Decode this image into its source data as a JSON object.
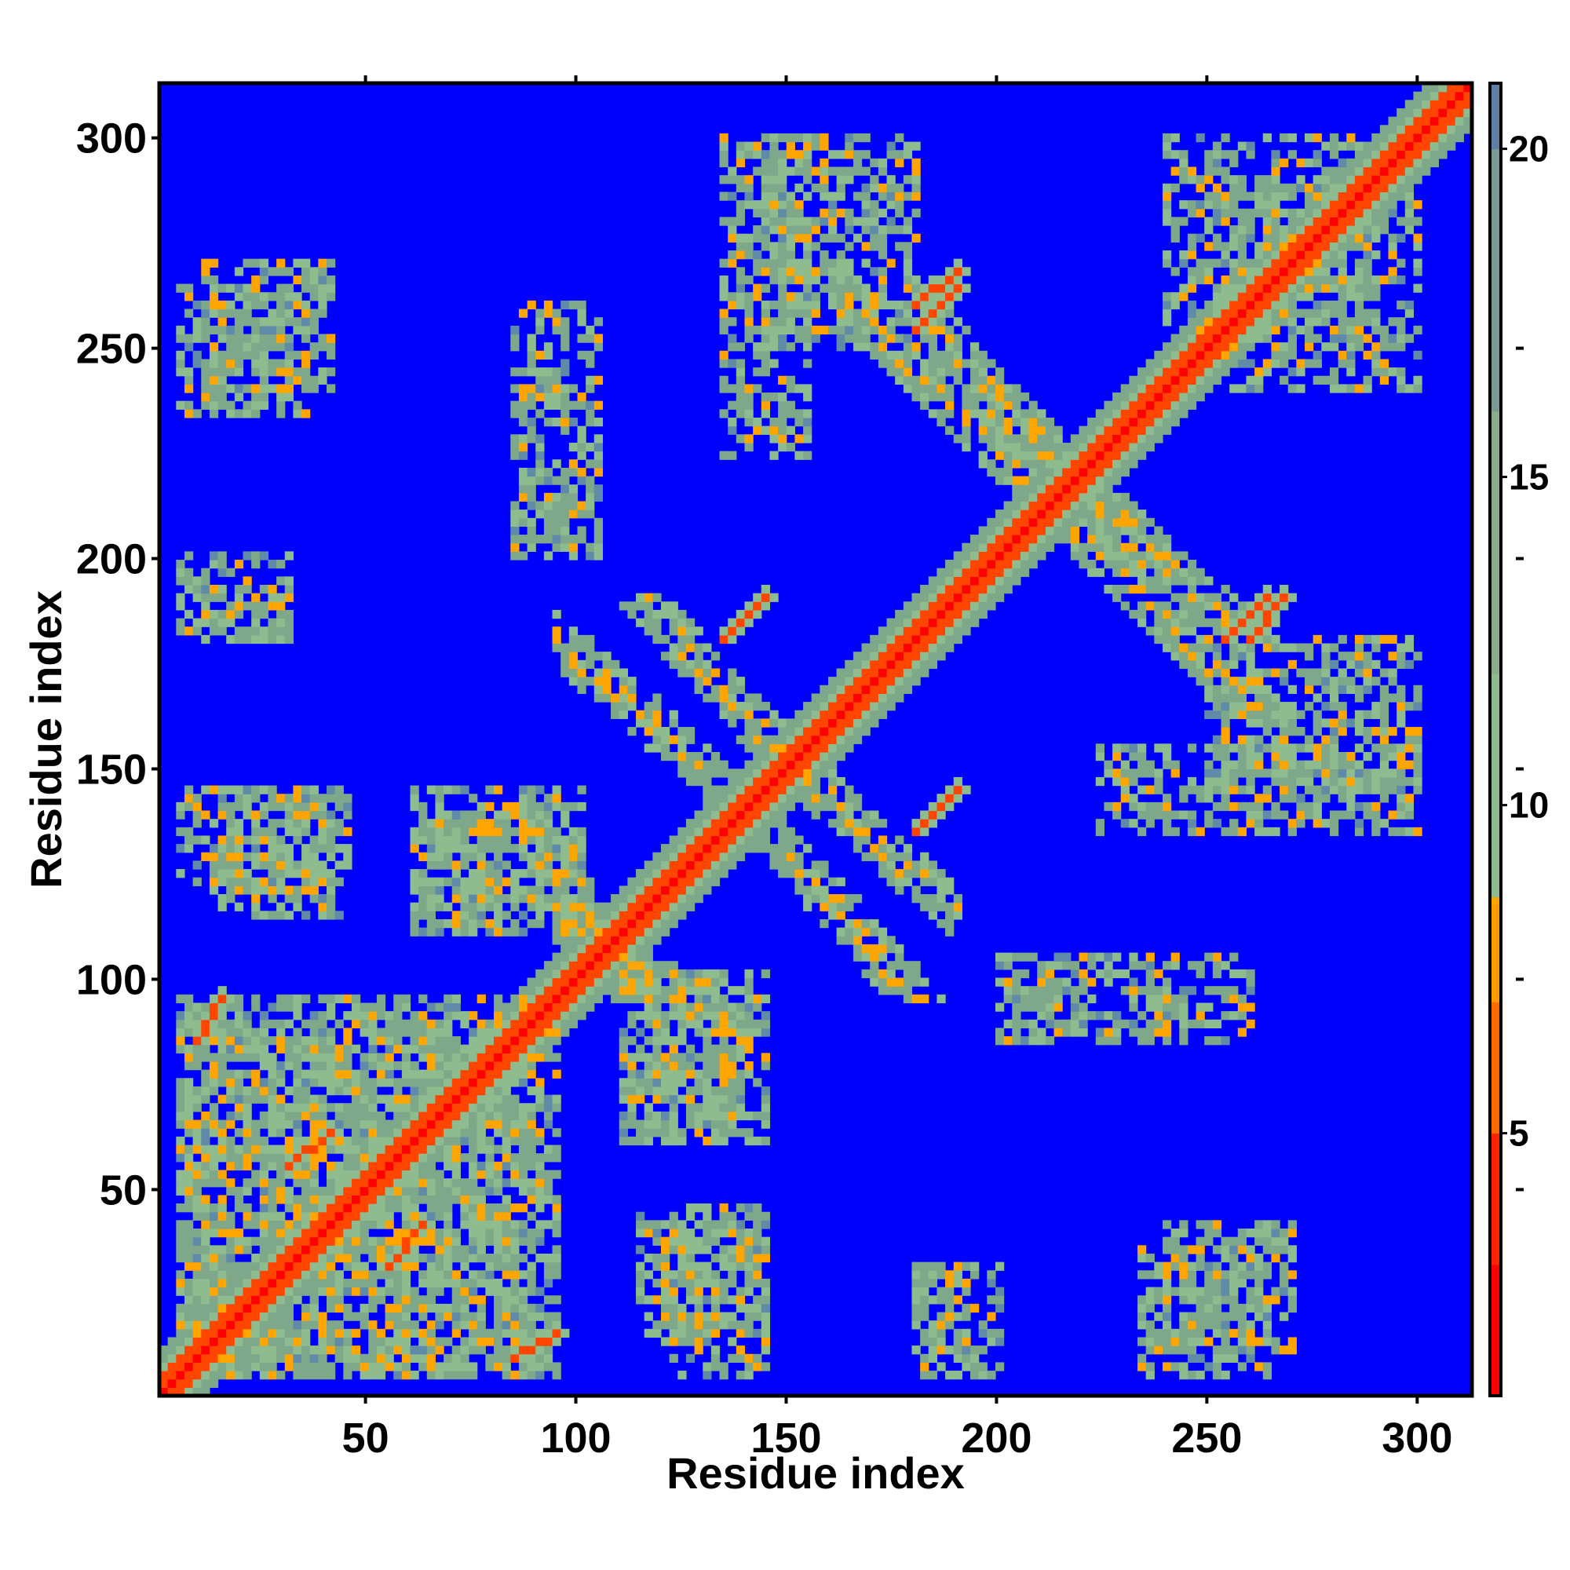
{
  "chart_data": {
    "type": "heatmap",
    "title": "",
    "xlabel": "Residue index",
    "ylabel": "Residue index",
    "xlim": [
      1,
      313
    ],
    "ylim": [
      1,
      313
    ],
    "x_ticks": [
      50,
      100,
      150,
      200,
      250,
      300
    ],
    "y_ticks": [
      50,
      100,
      150,
      200,
      250,
      300
    ],
    "colorbar": {
      "ticks": [
        5,
        10,
        15,
        20
      ],
      "range": [
        1,
        21
      ],
      "colors": {
        "low": "#ff0000",
        "mid_low": "#ff8c00",
        "mid": "#8fbc8f",
        "high": "#5f8aa8",
        "background": "#0000ff"
      }
    },
    "symmetric": true,
    "diagonal": {
      "value": 2
    },
    "contact_features": [
      {
        "kind": "diagonal_band",
        "range": [
          1,
          313
        ],
        "width": 8
      },
      {
        "kind": "block",
        "x": [
          5,
          90
        ],
        "y": [
          5,
          95
        ],
        "level": "medium"
      },
      {
        "kind": "block",
        "x": [
          110,
          145
        ],
        "y": [
          60,
          100
        ],
        "level": "medium"
      },
      {
        "kind": "block",
        "x": [
          115,
          145
        ],
        "y": [
          15,
          45
        ],
        "level": "medium"
      },
      {
        "kind": "block",
        "x": [
          180,
          195
        ],
        "y": [
          10,
          30
        ],
        "level": "medium"
      },
      {
        "kind": "block",
        "x": [
          240,
          270
        ],
        "y": [
          10,
          40
        ],
        "level": "medium"
      },
      {
        "kind": "block",
        "x": [
          5,
          35
        ],
        "y": [
          235,
          265
        ],
        "level": "medium"
      },
      {
        "kind": "block",
        "x": [
          5,
          40
        ],
        "y": [
          120,
          145
        ],
        "level": "medium"
      },
      {
        "kind": "block",
        "x": [
          60,
          80
        ],
        "y": [
          110,
          135
        ],
        "level": "medium"
      },
      {
        "kind": "block",
        "x": [
          5,
          30
        ],
        "y": [
          180,
          200
        ],
        "level": "medium"
      },
      {
        "kind": "block",
        "x": [
          240,
          290
        ],
        "y": [
          255,
          300
        ],
        "level": "medium"
      },
      {
        "kind": "block",
        "x": [
          200,
          260
        ],
        "y": [
          85,
          105
        ],
        "level": "medium"
      },
      {
        "kind": "block",
        "x": [
          225,
          300
        ],
        "y": [
          135,
          155
        ],
        "level": "medium"
      },
      {
        "kind": "block",
        "x": [
          145,
          180
        ],
        "y": [
          250,
          300
        ],
        "level": "medium"
      },
      {
        "kind": "antidiagonal",
        "x": [
          85,
          115
        ],
        "y": [
          95,
          140
        ],
        "level": "medium"
      },
      {
        "kind": "antidiagonal",
        "x": [
          140,
          180
        ],
        "y": [
          95,
          140
        ],
        "level": "medium"
      },
      {
        "kind": "antidiagonal",
        "x": [
          115,
          150
        ],
        "y": [
          150,
          190
        ],
        "level": "medium"
      },
      {
        "kind": "antidiagonal",
        "x": [
          180,
          240
        ],
        "y": [
          195,
          260
        ],
        "level": "medium"
      },
      {
        "kind": "antidiagonal",
        "x": [
          215,
          265
        ],
        "y": [
          160,
          210
        ],
        "level": "medium"
      },
      {
        "kind": "strand_pair",
        "x": [
          135,
          145
        ],
        "y": [
          180,
          190
        ],
        "level": "low"
      },
      {
        "kind": "strand_pair",
        "x": [
          180,
          190
        ],
        "y": [
          135,
          145
        ],
        "level": "low"
      },
      {
        "kind": "strand_pair",
        "x": [
          260,
          268
        ],
        "y": [
          180,
          190
        ],
        "level": "low"
      },
      {
        "kind": "strand_pair",
        "x": [
          180,
          190
        ],
        "y": [
          255,
          265
        ],
        "level": "low"
      },
      {
        "kind": "strand_pair",
        "x": [
          8,
          15
        ],
        "y": [
          85,
          95
        ],
        "level": "low"
      },
      {
        "kind": "strand_pair",
        "x": [
          85,
          95
        ],
        "y": [
          8,
          15
        ],
        "level": "low"
      },
      {
        "kind": "strand_pair",
        "x": [
          30,
          40
        ],
        "y": [
          55,
          62
        ],
        "level": "low"
      },
      {
        "kind": "strand_pair",
        "x": [
          55,
          62
        ],
        "y": [
          30,
          40
        ],
        "level": "low"
      }
    ]
  }
}
